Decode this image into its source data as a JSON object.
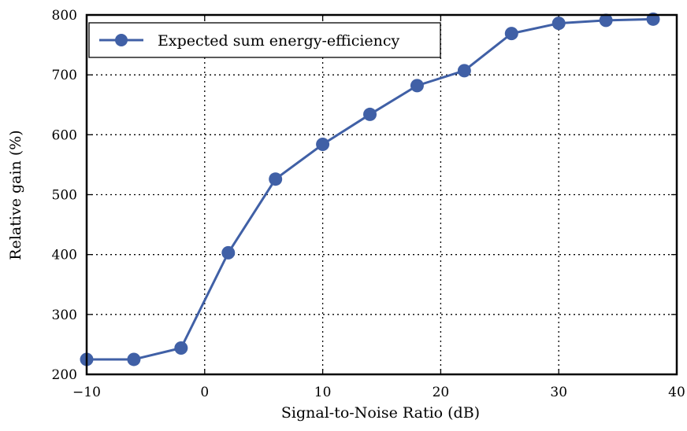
{
  "chart_data": {
    "type": "line",
    "title": "",
    "xlabel": "Signal-to-Noise Ratio (dB)",
    "ylabel": "Relative gain (%)",
    "xlim": [
      -10,
      40
    ],
    "ylim": [
      200,
      800
    ],
    "xticks": [
      -10,
      0,
      10,
      20,
      30,
      40
    ],
    "xtick_labels": [
      "−10",
      "0",
      "10",
      "20",
      "30",
      "40"
    ],
    "yticks": [
      200,
      300,
      400,
      500,
      600,
      700,
      800
    ],
    "ytick_labels": [
      "200",
      "300",
      "400",
      "500",
      "600",
      "700",
      "800"
    ],
    "grid": true,
    "legend_position": "top-left",
    "series": [
      {
        "name": "Expected sum energy-efficiency",
        "color": "#4060a6",
        "marker": "circle",
        "x": [
          -10,
          -6,
          -2,
          2,
          6,
          10,
          14,
          18,
          22,
          26,
          30,
          34,
          38
        ],
        "y": [
          225,
          225,
          244,
          403,
          526,
          584,
          634,
          682,
          707,
          769,
          786,
          791,
          793
        ]
      }
    ]
  }
}
